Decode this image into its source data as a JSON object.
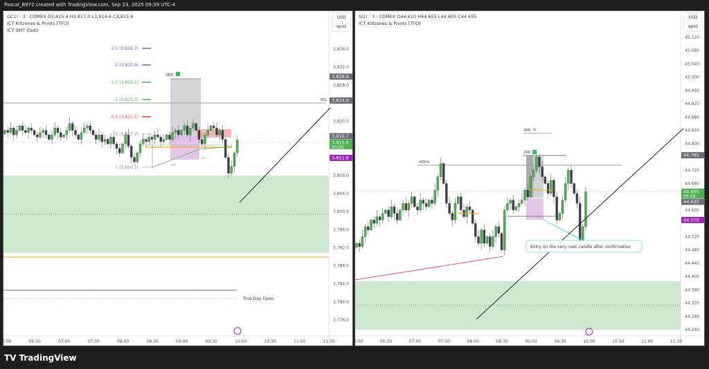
{
  "header": {
    "caption": "Pascal_B972 created with TradingView.com, Sep 23, 2025 09:59 UTC-4"
  },
  "footer": {
    "brand": "TradingView",
    "logo": "tradingview-logo"
  },
  "colors": {
    "up": "#4caf50",
    "down": "#3a3d45",
    "zone": "#c8e6c9",
    "accent_purple": "#9c27b0",
    "green_tag": "#4caf50",
    "gray_tag": "#6b6e76"
  },
  "left": {
    "symbol_line": "GC1! · 3 · COMEX  O3,815.4  H3,817.0  L3,814.6  C3,815.9",
    "indicators": [
      "ICT Killzones & Pivots [TFO]",
      "ICT SMT (fadi)"
    ],
    "currency": "USD",
    "scale_mode": "apoz",
    "price_ticks": [
      "3,836.0",
      "3,832.0",
      "3,828.0",
      "3,820.0",
      "3,808.0",
      "3,804.0",
      "3,800.0",
      "3,796.0",
      "3,792.0",
      "3,788.0",
      "3,784.0",
      "3,780.0",
      "3,776.0"
    ],
    "time_ticks": [
      "6:00",
      "06:30",
      "07:00",
      "07:30",
      "08:00",
      "08:30",
      "09:00",
      "09:30",
      "10:00",
      "10:30",
      "11:00",
      "11:30"
    ],
    "tags": [
      {
        "text": "3,829.9",
        "value": 3829.9,
        "kind": "gray"
      },
      {
        "text": "3,824.6",
        "value": 3824.6,
        "kind": "gray"
      },
      {
        "text": "3,816.7",
        "value": 3816.7,
        "kind": "gray"
      },
      {
        "text": "3,815.9",
        "value": 3815.9,
        "kind": "green",
        "sub": "00:29"
      },
      {
        "text": "3,811.9",
        "value": 3811.9,
        "kind": "purple"
      }
    ],
    "fib_levels": [
      {
        "text": "-2.5 (3,836.7)",
        "color": "#7e57c2"
      },
      {
        "text": "-2 (3,832.9)",
        "color": "#7e57c2"
      },
      {
        "text": "-1.5 (3,829.1)",
        "color": "#4caf50"
      },
      {
        "text": "-1 (3,825.3)",
        "color": "#4caf50"
      },
      {
        "text": "-0.5 (3,821.5)",
        "color": "#e53935"
      },
      {
        "text": "0 (3,817.7)",
        "color": "#888"
      },
      {
        "text": "1 (3,810.1)",
        "color": "#888"
      }
    ],
    "rr_label": "3RR",
    "bsl_label": "BSL",
    "smt_labels": [
      "SMT",
      "SMT"
    ],
    "true_day_open": "True Day Open",
    "closes": [
      3818,
      3817.5,
      3818.5,
      3817,
      3818,
      3819,
      3818,
      3817.5,
      3818.5,
      3818,
      3817,
      3816.5,
      3817.5,
      3818,
      3817,
      3816,
      3817,
      3818.5,
      3817.5,
      3816.5,
      3817,
      3818,
      3819.5,
      3818,
      3817,
      3816,
      3817.5,
      3818.5,
      3819,
      3818,
      3817,
      3816,
      3817,
      3815.5,
      3816,
      3815,
      3816.5,
      3815,
      3814,
      3813,
      3815,
      3817,
      3814.5,
      3812,
      3811,
      3813,
      3815,
      3816,
      3815.5,
      3816.5,
      3816,
      3817,
      3816.5,
      3815.5,
      3816,
      3817,
      3816,
      3817.5,
      3818,
      3817,
      3818,
      3819,
      3817,
      3818.5,
      3819.5,
      3818,
      3816,
      3815,
      3817,
      3818,
      3819,
      3818.5,
      3817,
      3818,
      3816,
      3812,
      3808.5,
      3810,
      3813,
      3815.9
    ]
  },
  "right": {
    "symbol_line": "SI1! · 3 · COMEX  O44.610  H44.655  L44.605  C44.655",
    "indicators": [
      "ICT Killzones & Pivots [TFO]"
    ],
    "currency": "USD",
    "scale_mode": "apoz",
    "price_ticks": [
      "45.120",
      "45.080",
      "45.040",
      "45.000",
      "44.960",
      "44.920",
      "44.880",
      "44.840",
      "44.800",
      "44.720",
      "44.680",
      "44.600",
      "44.520",
      "44.480",
      "44.440",
      "44.400",
      "44.360",
      "44.320",
      "44.280",
      "44.240"
    ],
    "time_ticks": [
      "6:00",
      "06:30",
      "07:00",
      "07:30",
      "08:00",
      "08:30",
      "09:00",
      "09:30",
      "10:00",
      "10:30",
      "11:00",
      "11:30"
    ],
    "tags": [
      {
        "text": "44.765",
        "value": 44.765,
        "kind": "gray"
      },
      {
        "text": "44.655",
        "value": 44.655,
        "kind": "green",
        "sub": "00:29"
      },
      {
        "text": "44.635",
        "value": 44.635,
        "kind": "gray"
      },
      {
        "text": "44.570",
        "value": 44.57,
        "kind": "purple"
      }
    ],
    "eqh_label": "rEQHs",
    "rr3_label": "3RR",
    "rr2_label": "2RR",
    "callout": "Entry on the very next candle after confirmation",
    "closes": [
      44.5,
      44.49,
      44.52,
      44.55,
      44.54,
      44.57,
      44.56,
      44.58,
      44.57,
      44.59,
      44.6,
      44.58,
      44.61,
      44.59,
      44.57,
      44.6,
      44.62,
      44.6,
      44.62,
      44.64,
      44.61,
      44.6,
      44.63,
      44.62,
      44.61,
      44.63,
      44.62,
      44.66,
      44.7,
      44.74,
      44.68,
      44.62,
      44.59,
      44.57,
      44.62,
      44.64,
      44.6,
      44.58,
      44.61,
      44.6,
      44.56,
      44.52,
      44.5,
      44.54,
      44.5,
      44.52,
      44.49,
      44.52,
      44.55,
      44.53,
      44.48,
      44.6,
      44.62,
      44.63,
      44.6,
      44.61,
      44.62,
      44.63,
      44.66,
      44.64,
      44.7,
      44.72,
      44.76,
      44.73,
      44.7,
      44.68,
      44.65,
      44.69,
      44.64,
      44.57,
      44.59,
      44.63,
      44.68,
      44.72,
      44.68,
      44.65,
      44.62,
      44.51,
      44.55,
      44.655
    ]
  }
}
